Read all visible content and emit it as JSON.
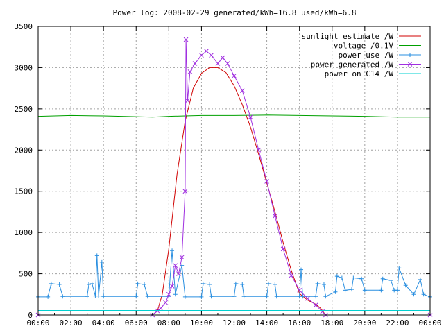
{
  "colors": {
    "sunlight": "#d00000",
    "voltage": "#00a000",
    "use": "#2a8fe0",
    "generated": "#a030e0",
    "c14": "#00d0d0",
    "grid": "#a0a0a0"
  },
  "chart_data": {
    "type": "line",
    "title": "Power log: 2008-02-29 generated/kWh=16.8 used/kWh=6.8",
    "xlim": [
      0,
      24
    ],
    "ylim": [
      0,
      3500
    ],
    "x_tick_labels": [
      "00:00",
      "02:00",
      "04:00",
      "06:00",
      "08:00",
      "10:00",
      "12:00",
      "14:00",
      "16:00",
      "18:00",
      "20:00",
      "22:00",
      "00:00"
    ],
    "y_tick_labels": [
      "0",
      "500",
      "1000",
      "1500",
      "2000",
      "2500",
      "3000",
      "3500"
    ],
    "grid": true,
    "legend_position": "top-right",
    "series": [
      {
        "name": "sunlight estimate /W",
        "color_key": "sunlight",
        "marker": "none",
        "points": [
          [
            0,
            0
          ],
          [
            7.0,
            0
          ],
          [
            7.3,
            50
          ],
          [
            7.6,
            250
          ],
          [
            8.0,
            800
          ],
          [
            8.5,
            1700
          ],
          [
            9.0,
            2350
          ],
          [
            9.5,
            2750
          ],
          [
            10.0,
            2930
          ],
          [
            10.5,
            3000
          ],
          [
            11.0,
            3000
          ],
          [
            11.5,
            2940
          ],
          [
            12.0,
            2780
          ],
          [
            12.5,
            2550
          ],
          [
            13.0,
            2280
          ],
          [
            13.5,
            1950
          ],
          [
            14.0,
            1600
          ],
          [
            14.5,
            1250
          ],
          [
            15.0,
            880
          ],
          [
            15.5,
            540
          ],
          [
            16.0,
            260
          ],
          [
            16.5,
            180
          ],
          [
            17.0,
            130
          ],
          [
            17.3,
            80
          ],
          [
            17.6,
            0
          ],
          [
            24,
            0
          ]
        ]
      },
      {
        "name": "voltage /0.1V",
        "color_key": "voltage",
        "marker": "none",
        "points": [
          [
            0,
            2410
          ],
          [
            2,
            2420
          ],
          [
            4,
            2415
          ],
          [
            6,
            2405
          ],
          [
            7,
            2400
          ],
          [
            8,
            2410
          ],
          [
            9,
            2415
          ],
          [
            10,
            2420
          ],
          [
            12,
            2420
          ],
          [
            14,
            2425
          ],
          [
            16,
            2420
          ],
          [
            18,
            2415
          ],
          [
            20,
            2410
          ],
          [
            22,
            2400
          ],
          [
            24,
            2400
          ]
        ]
      },
      {
        "name": "power use /W",
        "color_key": "use",
        "marker": "plus",
        "points": [
          [
            0,
            220
          ],
          [
            0.6,
            220
          ],
          [
            0.8,
            380
          ],
          [
            1.3,
            370
          ],
          [
            1.5,
            225
          ],
          [
            3.0,
            225
          ],
          [
            3.1,
            370
          ],
          [
            3.3,
            380
          ],
          [
            3.5,
            230
          ],
          [
            3.6,
            720
          ],
          [
            3.7,
            230
          ],
          [
            3.9,
            640
          ],
          [
            4.0,
            225
          ],
          [
            6.0,
            225
          ],
          [
            6.1,
            380
          ],
          [
            6.5,
            370
          ],
          [
            6.7,
            225
          ],
          [
            8.0,
            225
          ],
          [
            8.2,
            780
          ],
          [
            8.4,
            250
          ],
          [
            8.8,
            600
          ],
          [
            9.0,
            220
          ],
          [
            10.0,
            220
          ],
          [
            10.1,
            380
          ],
          [
            10.5,
            370
          ],
          [
            10.6,
            225
          ],
          [
            12.0,
            225
          ],
          [
            12.1,
            380
          ],
          [
            12.5,
            370
          ],
          [
            12.6,
            225
          ],
          [
            14.0,
            225
          ],
          [
            14.1,
            380
          ],
          [
            14.5,
            370
          ],
          [
            14.6,
            225
          ],
          [
            16.0,
            225
          ],
          [
            16.1,
            550
          ],
          [
            16.2,
            225
          ],
          [
            17.0,
            225
          ],
          [
            17.1,
            380
          ],
          [
            17.5,
            370
          ],
          [
            17.6,
            225
          ],
          [
            18.2,
            280
          ],
          [
            18.3,
            470
          ],
          [
            18.6,
            450
          ],
          [
            18.8,
            300
          ],
          [
            19.2,
            310
          ],
          [
            19.3,
            450
          ],
          [
            19.8,
            440
          ],
          [
            20.0,
            300
          ],
          [
            21.0,
            300
          ],
          [
            21.1,
            440
          ],
          [
            21.6,
            420
          ],
          [
            21.8,
            300
          ],
          [
            22.0,
            300
          ],
          [
            22.1,
            570
          ],
          [
            22.5,
            360
          ],
          [
            23.0,
            250
          ],
          [
            23.4,
            430
          ],
          [
            23.6,
            250
          ],
          [
            24,
            220
          ]
        ]
      },
      {
        "name": "power generated /W",
        "color_key": "generated",
        "marker": "cross",
        "points": [
          [
            0,
            0
          ],
          [
            7.0,
            0
          ],
          [
            7.3,
            50
          ],
          [
            7.5,
            80
          ],
          [
            7.8,
            150
          ],
          [
            8.0,
            250
          ],
          [
            8.2,
            350
          ],
          [
            8.4,
            600
          ],
          [
            8.6,
            500
          ],
          [
            8.8,
            700
          ],
          [
            9.0,
            1500
          ],
          [
            9.05,
            3340
          ],
          [
            9.15,
            2600
          ],
          [
            9.3,
            2950
          ],
          [
            9.6,
            3050
          ],
          [
            10.0,
            3150
          ],
          [
            10.3,
            3200
          ],
          [
            10.6,
            3150
          ],
          [
            11.0,
            3050
          ],
          [
            11.3,
            3120
          ],
          [
            11.6,
            3050
          ],
          [
            12.0,
            2900
          ],
          [
            12.5,
            2720
          ],
          [
            13.0,
            2400
          ],
          [
            13.5,
            2000
          ],
          [
            14.0,
            1620
          ],
          [
            14.5,
            1200
          ],
          [
            15.0,
            800
          ],
          [
            15.5,
            480
          ],
          [
            16.0,
            300
          ],
          [
            16.5,
            200
          ],
          [
            17.0,
            120
          ],
          [
            17.4,
            40
          ],
          [
            17.6,
            0
          ],
          [
            24,
            0
          ]
        ]
      },
      {
        "name": "power on C14 /W",
        "color_key": "c14",
        "marker": "none",
        "points": [
          [
            0,
            55
          ],
          [
            24,
            55
          ]
        ]
      }
    ]
  }
}
